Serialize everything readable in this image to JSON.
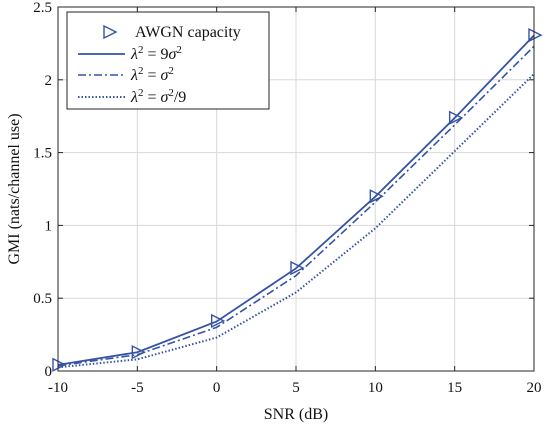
{
  "colors": {
    "series": "#3653a4",
    "axis": "#262626",
    "grid": "#d9d9d9"
  },
  "chart_data": {
    "type": "line",
    "xlabel": "SNR (dB)",
    "ylabel": "GMI (nats/channel use)",
    "xlim": [
      -10,
      20
    ],
    "ylim": [
      0,
      2.5
    ],
    "xticks": [
      -10,
      -5,
      0,
      5,
      10,
      15,
      20
    ],
    "xtick_labels": [
      "-10",
      "-5",
      "0",
      "5",
      "10",
      "15",
      "20"
    ],
    "yticks": [
      0,
      0.5,
      1,
      1.5,
      2,
      2.5
    ],
    "ytick_labels": [
      "0",
      "0.5",
      "1",
      "1.5",
      "2",
      "2.5"
    ],
    "grid": true,
    "legend_position": "top-left",
    "x": [
      -10,
      -5,
      0,
      5,
      10,
      15,
      20
    ],
    "series": [
      {
        "name": "AWGN capacity",
        "style": "markers",
        "marker": "triangle-right",
        "values": [
          0.043,
          0.13,
          0.344,
          0.707,
          1.2,
          1.739,
          2.307
        ]
      },
      {
        "name": "λ² = 9σ²",
        "style": "solid",
        "values": [
          0.042,
          0.129,
          0.34,
          0.705,
          1.198,
          1.738,
          2.305
        ]
      },
      {
        "name": "λ² = σ²",
        "style": "dashdot",
        "values": [
          0.036,
          0.112,
          0.3,
          0.655,
          1.16,
          1.69,
          2.23
        ]
      },
      {
        "name": "λ² = σ²/9",
        "style": "dotted",
        "values": [
          0.025,
          0.08,
          0.23,
          0.54,
          0.98,
          1.51,
          2.04
        ]
      }
    ]
  }
}
